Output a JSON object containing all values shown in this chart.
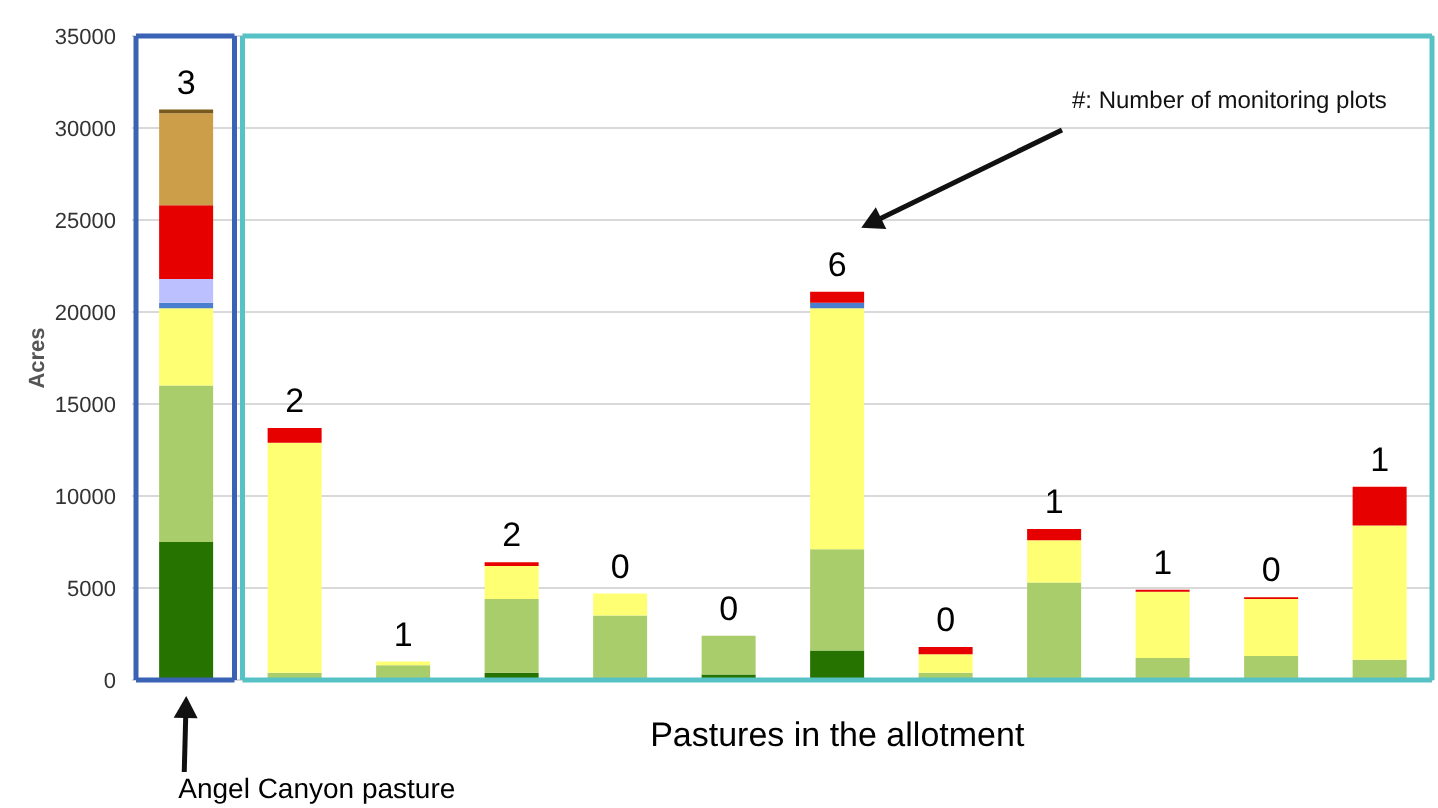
{
  "chart_data": {
    "type": "bar",
    "stacked": true,
    "xlabel": "Pastures in the allotment",
    "ylabel": "Acres",
    "categories": [
      null,
      null,
      null,
      null,
      null,
      null,
      null,
      null,
      null,
      null,
      null,
      null
    ],
    "series": [
      {
        "color": "#267300",
        "values": [
          7500,
          null,
          null,
          400,
          null,
          300,
          1600,
          null,
          null,
          null,
          null,
          null
        ]
      },
      {
        "color": "#a9cd6a",
        "values": [
          8500,
          400,
          800,
          4000,
          3500,
          2100,
          5500,
          400,
          5300,
          1200,
          1300,
          1100
        ]
      },
      {
        "color": "#ffff73",
        "values": [
          4200,
          12500,
          200,
          1800,
          1200,
          null,
          13100,
          1000,
          2300,
          3600,
          3100,
          7300
        ]
      },
      {
        "color": "#4a7fd0",
        "values": [
          300,
          null,
          null,
          null,
          null,
          null,
          300,
          null,
          null,
          null,
          null,
          null
        ]
      },
      {
        "color": "#bcc0ff",
        "values": [
          1300,
          null,
          null,
          null,
          null,
          null,
          null,
          null,
          null,
          null,
          null,
          null
        ]
      },
      {
        "color": "#e60000",
        "values": [
          4000,
          800,
          null,
          200,
          null,
          null,
          600,
          400,
          600,
          100,
          100,
          2100
        ]
      },
      {
        "color": "#cc9e4a",
        "values": [
          5000,
          null,
          null,
          null,
          null,
          null,
          null,
          null,
          null,
          null,
          null,
          null
        ]
      },
      {
        "color": "#7a5a1a",
        "values": [
          200,
          null,
          null,
          null,
          null,
          null,
          null,
          null,
          null,
          null,
          null,
          null
        ]
      }
    ],
    "ylim": [
      0,
      35000
    ],
    "yticks": [
      0,
      5000,
      10000,
      15000,
      20000,
      25000,
      30000,
      35000
    ],
    "grid": "y",
    "legend": false,
    "annotations": [
      "3",
      "2",
      "1",
      "2",
      "0",
      "0",
      "6",
      "0",
      "1",
      "1",
      "0",
      "1",
      "#: Number of monitoring plots",
      "Angel Canyon pasture"
    ]
  }
}
